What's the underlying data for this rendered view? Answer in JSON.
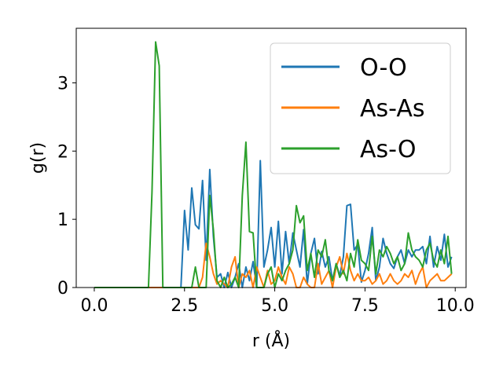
{
  "chart_data": {
    "type": "line",
    "title": "",
    "xlabel": "r (Å)",
    "ylabel": "g(r)",
    "xlim": [
      -0.5,
      10.3
    ],
    "ylim": [
      0,
      3.8
    ],
    "x_ticks": [
      0.0,
      2.5,
      5.0,
      7.5,
      10.0
    ],
    "x_tick_labels": [
      "0.0",
      "2.5",
      "5.0",
      "7.5",
      "10.0"
    ],
    "y_ticks": [
      0,
      1,
      2,
      3
    ],
    "y_tick_labels": [
      "0",
      "1",
      "2",
      "3"
    ],
    "grid": false,
    "legend": "top-right",
    "series": [
      {
        "name": "O-O",
        "color": "#1f77b4",
        "x": [
          0.0,
          2.3,
          2.4,
          2.5,
          2.6,
          2.7,
          2.8,
          2.9,
          3.0,
          3.1,
          3.2,
          3.3,
          3.4,
          3.5,
          3.6,
          3.7,
          3.8,
          3.9,
          4.0,
          4.1,
          4.2,
          4.3,
          4.4,
          4.5,
          4.6,
          4.7,
          4.8,
          4.9,
          5.0,
          5.1,
          5.2,
          5.3,
          5.4,
          5.5,
          5.6,
          5.7,
          5.8,
          5.9,
          6.0,
          6.1,
          6.2,
          6.3,
          6.4,
          6.5,
          6.6,
          6.7,
          6.8,
          6.9,
          7.0,
          7.1,
          7.2,
          7.3,
          7.4,
          7.5,
          7.6,
          7.7,
          7.8,
          7.9,
          8.0,
          8.1,
          8.2,
          8.3,
          8.4,
          8.5,
          8.6,
          8.7,
          8.8,
          8.9,
          9.0,
          9.1,
          9.2,
          9.3,
          9.4,
          9.5,
          9.6,
          9.7,
          9.8,
          9.9
        ],
        "y": [
          0.0,
          0.0,
          0.0,
          1.13,
          0.55,
          1.46,
          0.92,
          0.86,
          1.57,
          0.4,
          1.73,
          0.75,
          0.15,
          0.2,
          0.0,
          0.22,
          0.0,
          0.15,
          0.35,
          0.0,
          0.3,
          0.1,
          0.38,
          0.0,
          1.86,
          0.3,
          0.55,
          0.88,
          0.3,
          0.97,
          0.2,
          0.82,
          0.35,
          0.8,
          0.55,
          0.3,
          0.85,
          0.05,
          0.5,
          0.72,
          0.2,
          0.53,
          0.3,
          0.45,
          0.1,
          0.35,
          0.17,
          0.45,
          1.2,
          1.22,
          0.55,
          0.63,
          0.08,
          0.25,
          0.5,
          0.88,
          0.1,
          0.3,
          0.72,
          0.5,
          0.35,
          0.28,
          0.45,
          0.55,
          0.35,
          0.55,
          0.45,
          0.55,
          0.55,
          0.6,
          0.35,
          0.75,
          0.3,
          0.6,
          0.4,
          0.78,
          0.3,
          0.45
        ]
      },
      {
        "name": "As-As",
        "color": "#ff7f0e",
        "x": [
          0.0,
          2.9,
          3.0,
          3.1,
          3.2,
          3.3,
          3.4,
          3.5,
          3.6,
          3.7,
          3.8,
          3.9,
          4.0,
          4.1,
          4.2,
          4.3,
          4.4,
          4.5,
          4.6,
          4.7,
          4.8,
          4.9,
          5.0,
          5.1,
          5.2,
          5.3,
          5.4,
          5.5,
          5.6,
          5.7,
          5.8,
          5.9,
          6.0,
          6.1,
          6.2,
          6.3,
          6.4,
          6.5,
          6.6,
          6.7,
          6.8,
          6.9,
          7.0,
          7.1,
          7.2,
          7.3,
          7.4,
          7.5,
          7.6,
          7.7,
          7.8,
          7.9,
          8.0,
          8.1,
          8.2,
          8.3,
          8.4,
          8.5,
          8.6,
          8.7,
          8.8,
          8.9,
          9.0,
          9.1,
          9.2,
          9.3,
          9.4,
          9.5,
          9.6,
          9.7,
          9.8,
          9.9
        ],
        "y": [
          0.0,
          0.0,
          0.15,
          0.65,
          0.45,
          0.2,
          0.05,
          0.1,
          0.05,
          0.0,
          0.3,
          0.45,
          0.0,
          0.2,
          0.15,
          0.25,
          0.0,
          0.3,
          0.15,
          0.0,
          0.25,
          0.05,
          0.1,
          0.3,
          0.15,
          0.05,
          0.3,
          0.2,
          0.0,
          0.0,
          0.15,
          0.05,
          0.0,
          0.0,
          0.35,
          0.05,
          0.15,
          0.25,
          0.0,
          0.3,
          0.45,
          0.2,
          0.5,
          0.25,
          0.1,
          0.2,
          0.1,
          0.1,
          0.15,
          0.05,
          0.1,
          0.2,
          0.05,
          0.1,
          0.2,
          0.1,
          0.05,
          0.1,
          0.2,
          0.15,
          0.25,
          0.05,
          0.2,
          0.3,
          0.0,
          0.1,
          0.15,
          0.2,
          0.1,
          0.1,
          0.15,
          0.2
        ]
      },
      {
        "name": "As-O",
        "color": "#2ca02c",
        "x": [
          0.0,
          1.5,
          1.6,
          1.7,
          1.8,
          1.9,
          2.0,
          2.7,
          2.8,
          2.9,
          3.0,
          3.1,
          3.2,
          3.3,
          3.4,
          3.5,
          3.6,
          3.7,
          3.8,
          3.9,
          4.0,
          4.1,
          4.2,
          4.3,
          4.4,
          4.5,
          4.6,
          4.7,
          4.8,
          4.9,
          5.0,
          5.1,
          5.2,
          5.3,
          5.4,
          5.5,
          5.6,
          5.7,
          5.8,
          5.9,
          6.0,
          6.1,
          6.2,
          6.3,
          6.4,
          6.5,
          6.6,
          6.7,
          6.8,
          6.9,
          7.0,
          7.1,
          7.2,
          7.3,
          7.4,
          7.5,
          7.6,
          7.7,
          7.8,
          7.9,
          8.0,
          8.1,
          8.2,
          8.3,
          8.4,
          8.5,
          8.6,
          8.7,
          8.8,
          8.9,
          9.0,
          9.1,
          9.2,
          9.3,
          9.4,
          9.5,
          9.6,
          9.7,
          9.8,
          9.9
        ],
        "y": [
          0.0,
          0.0,
          1.4,
          3.6,
          3.25,
          0.0,
          0.0,
          0.0,
          0.3,
          0.0,
          0.0,
          0.0,
          1.35,
          0.85,
          0.1,
          0.0,
          0.15,
          0.0,
          0.05,
          0.15,
          0.0,
          1.35,
          2.13,
          0.82,
          0.8,
          0.0,
          0.0,
          0.0,
          0.2,
          0.3,
          0.0,
          0.2,
          0.1,
          0.25,
          0.35,
          0.55,
          1.2,
          0.95,
          1.05,
          0.25,
          0.5,
          0.15,
          0.55,
          0.45,
          0.7,
          0.25,
          0.1,
          0.35,
          0.15,
          0.25,
          0.1,
          0.5,
          0.3,
          0.7,
          0.4,
          0.35,
          0.25,
          0.75,
          0.2,
          0.55,
          0.45,
          0.6,
          0.5,
          0.35,
          0.45,
          0.25,
          0.35,
          0.8,
          0.55,
          0.45,
          0.4,
          0.3,
          0.55,
          0.65,
          0.4,
          0.3,
          0.55,
          0.35,
          0.75,
          0.2
        ]
      }
    ]
  }
}
